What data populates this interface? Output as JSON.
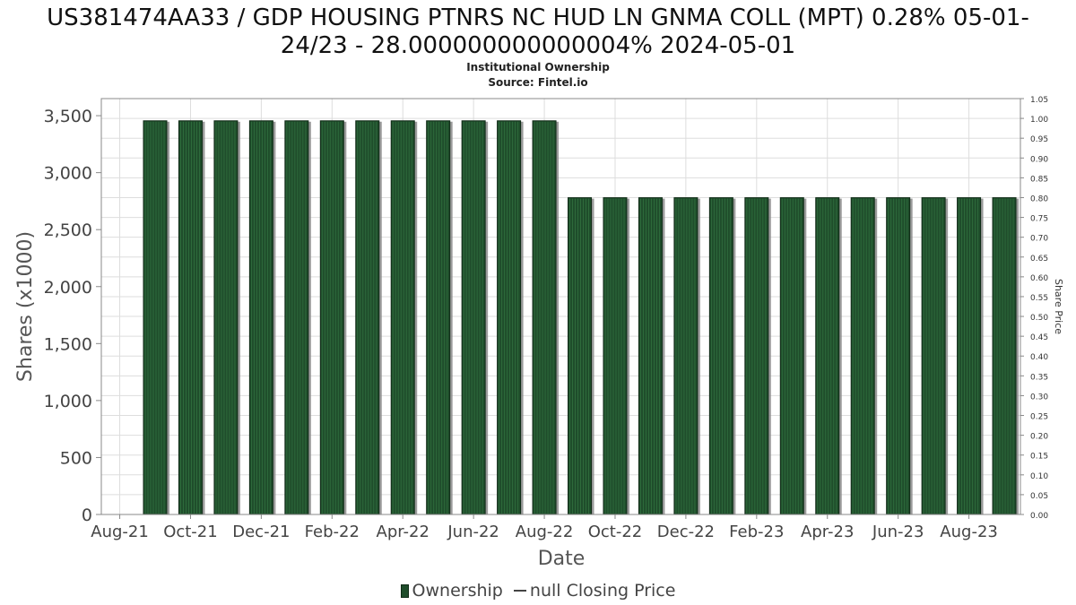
{
  "header": {
    "title_line1": "US381474AA33 / GDP HOUSING PTNRS NC HUD LN GNMA COLL (MPT) 0.28% 05-01-",
    "title_line2": "24/23 - 28.000000000000004% 2024-05-01",
    "subtitle_line1": "Institutional Ownership",
    "subtitle_line2": "Source: Fintel.io"
  },
  "legend": {
    "ownership_label": "Ownership",
    "price_label": "null Closing Price"
  },
  "colors": {
    "bar_fill": "#1f4d2b",
    "bar_stripe": "#2e6b3c",
    "bar_shadow": "#8a8a8a",
    "grid": "#dddddd",
    "axis": "#888888"
  },
  "chart_data": {
    "type": "bar",
    "xlabel": "Date",
    "ylabel": "Shares (x1000)",
    "y2label": "Share Price",
    "ylim": [
      0,
      3650
    ],
    "y2lim": [
      0,
      1.05
    ],
    "grid": true,
    "legend_position": "bottom-center",
    "x_tick_labels": [
      "Aug-21",
      "Oct-21",
      "Dec-21",
      "Feb-22",
      "Apr-22",
      "Jun-22",
      "Aug-22",
      "Oct-22",
      "Dec-22",
      "Feb-23",
      "Apr-23",
      "Jun-23",
      "Aug-23"
    ],
    "y_ticks": [
      0,
      500,
      1000,
      1500,
      2000,
      2500,
      3000,
      3500
    ],
    "y_tick_labels": [
      "0",
      "500",
      "1,000",
      "1,500",
      "2,000",
      "2,500",
      "3,000",
      "3,500"
    ],
    "y2_ticks": [
      0,
      0.05,
      0.1,
      0.15,
      0.2,
      0.25,
      0.3,
      0.35,
      0.4,
      0.45,
      0.5,
      0.55,
      0.6,
      0.65,
      0.7,
      0.75,
      0.8,
      0.85,
      0.9,
      0.95,
      1.0,
      1.05
    ],
    "y2_tick_labels": [
      "0.00",
      "0.05",
      "0.10",
      "0.15",
      "0.20",
      "0.25",
      "0.30",
      "0.35",
      "0.40",
      "0.45",
      "0.50",
      "0.55",
      "0.60",
      "0.65",
      "0.70",
      "0.75",
      "0.80",
      "0.85",
      "0.90",
      "0.95",
      "1.00",
      "1.05"
    ],
    "series": [
      {
        "name": "Ownership",
        "values": [
          3455,
          3455,
          3455,
          3455,
          3455,
          3455,
          3455,
          3455,
          3455,
          3455,
          3455,
          3455,
          2780,
          2780,
          2780,
          2780,
          2780,
          2780,
          2780,
          2780,
          2780,
          2780,
          2780,
          2780,
          2780
        ]
      }
    ]
  }
}
